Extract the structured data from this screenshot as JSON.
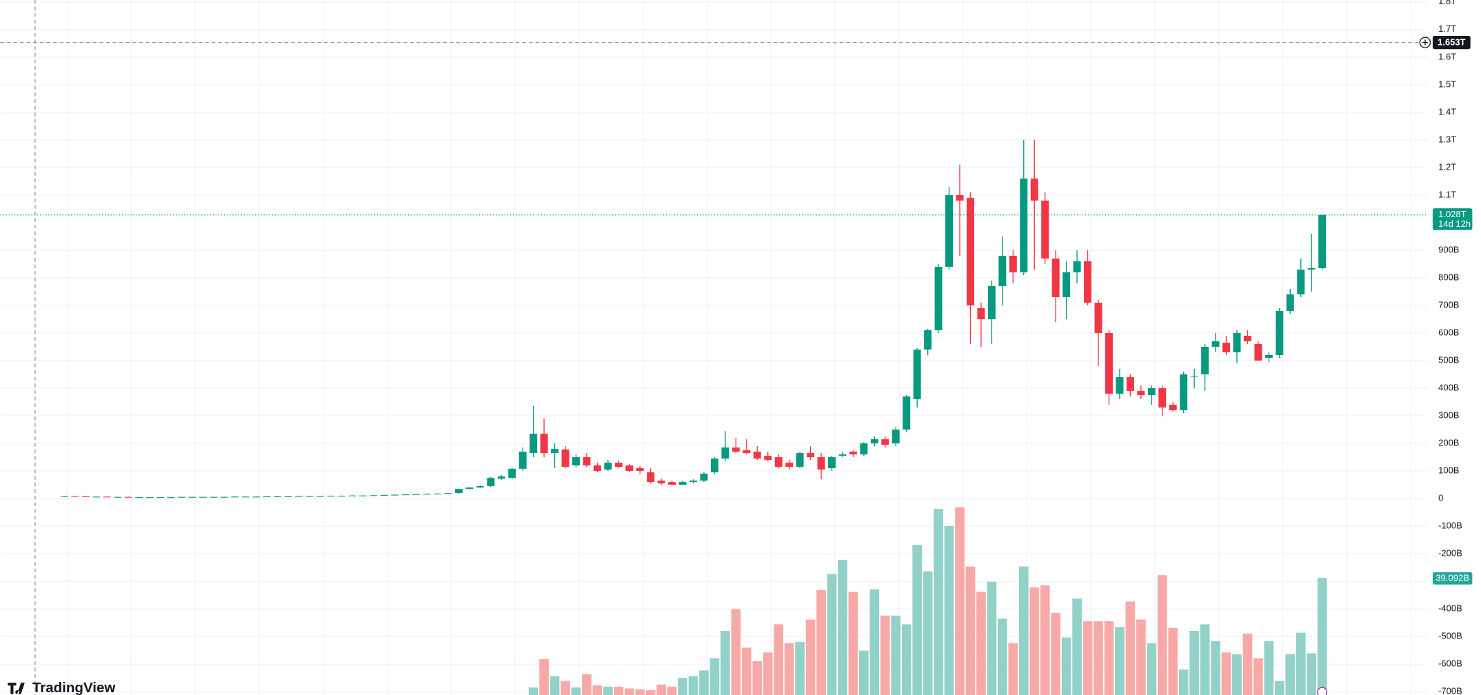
{
  "chart_data": {
    "type": "candlestick",
    "open": [
      8,
      9,
      8,
      7,
      7,
      6,
      6,
      5,
      5,
      5,
      5,
      5,
      6,
      6,
      6,
      6,
      6,
      7,
      7,
      7,
      8,
      8,
      8,
      9,
      9,
      9,
      10,
      10,
      11,
      11,
      12,
      13,
      14,
      15,
      16,
      17,
      18,
      20,
      35,
      40,
      45,
      72,
      75,
      108,
      165,
      235,
      165,
      178,
      120,
      150,
      120,
      105,
      130,
      120,
      110,
      95,
      65,
      60,
      50,
      60,
      65,
      95,
      145,
      185,
      175,
      170,
      155,
      150,
      130,
      115,
      165,
      150,
      110,
      155,
      170,
      160,
      200,
      215,
      200,
      250,
      360,
      540,
      610,
      840,
      1100,
      1090,
      690,
      650,
      770,
      880,
      820,
      1160,
      1080,
      870,
      730,
      820,
      860,
      710,
      600,
      380,
      440,
      390,
      375,
      400,
      340,
      320,
      445,
      450,
      550,
      565,
      530,
      590,
      560,
      510,
      520,
      680,
      740,
      830,
      835
    ],
    "high": [
      10,
      10,
      9,
      8,
      8,
      7,
      7,
      6,
      6,
      6,
      6,
      7,
      7,
      7,
      7,
      7,
      8,
      8,
      8,
      9,
      9,
      9,
      10,
      10,
      10,
      11,
      11,
      12,
      12,
      13,
      14,
      15,
      16,
      17,
      18,
      19,
      21,
      36,
      42,
      48,
      78,
      85,
      112,
      185,
      335,
      290,
      200,
      190,
      160,
      165,
      130,
      140,
      138,
      125,
      118,
      110,
      72,
      65,
      65,
      70,
      95,
      150,
      245,
      220,
      215,
      190,
      170,
      160,
      140,
      170,
      190,
      165,
      155,
      170,
      175,
      205,
      225,
      225,
      260,
      375,
      545,
      615,
      850,
      1130,
      1210,
      1110,
      710,
      790,
      950,
      900,
      1300,
      1300,
      1110,
      900,
      860,
      900,
      900,
      720,
      610,
      470,
      450,
      410,
      410,
      410,
      350,
      460,
      470,
      560,
      600,
      590,
      610,
      610,
      570,
      530,
      690,
      760,
      870,
      960,
      1028
    ],
    "low": [
      7,
      7,
      6,
      6,
      5,
      5,
      4,
      4,
      4,
      4,
      4,
      4,
      5,
      5,
      5,
      5,
      5,
      6,
      6,
      6,
      7,
      7,
      7,
      8,
      8,
      8,
      9,
      9,
      10,
      10,
      11,
      12,
      13,
      14,
      15,
      16,
      17,
      18,
      33,
      38,
      42,
      68,
      70,
      100,
      150,
      150,
      110,
      110,
      112,
      115,
      95,
      100,
      110,
      95,
      90,
      55,
      50,
      48,
      48,
      55,
      60,
      90,
      135,
      165,
      160,
      140,
      135,
      110,
      105,
      110,
      140,
      70,
      100,
      150,
      150,
      155,
      190,
      185,
      190,
      240,
      330,
      520,
      600,
      830,
      880,
      560,
      550,
      560,
      700,
      780,
      810,
      830,
      850,
      640,
      650,
      780,
      700,
      480,
      340,
      360,
      370,
      360,
      340,
      300,
      315,
      310,
      400,
      390,
      530,
      520,
      490,
      560,
      500,
      495,
      510,
      670,
      730,
      750,
      830
    ],
    "close": [
      9,
      8,
      7,
      7,
      6,
      6,
      5,
      5,
      5,
      5,
      5,
      6,
      6,
      6,
      6,
      6,
      7,
      7,
      7,
      8,
      8,
      8,
      9,
      9,
      9,
      10,
      10,
      11,
      11,
      12,
      13,
      14,
      15,
      16,
      17,
      18,
      20,
      35,
      40,
      45,
      75,
      80,
      108,
      170,
      235,
      165,
      180,
      115,
      150,
      120,
      100,
      130,
      115,
      100,
      100,
      60,
      55,
      50,
      60,
      65,
      90,
      145,
      185,
      170,
      165,
      145,
      140,
      115,
      115,
      165,
      150,
      105,
      150,
      160,
      160,
      200,
      215,
      195,
      250,
      370,
      540,
      610,
      840,
      1100,
      1080,
      700,
      650,
      770,
      880,
      820,
      1160,
      1080,
      870,
      730,
      820,
      860,
      710,
      600,
      380,
      440,
      390,
      375,
      400,
      330,
      320,
      450,
      445,
      550,
      570,
      530,
      600,
      570,
      500,
      520,
      680,
      740,
      830,
      835,
      1028
    ],
    "volume": [
      null,
      null,
      null,
      null,
      null,
      null,
      null,
      null,
      null,
      null,
      null,
      null,
      null,
      null,
      null,
      null,
      null,
      null,
      null,
      null,
      null,
      null,
      null,
      null,
      null,
      null,
      null,
      null,
      null,
      null,
      null,
      null,
      null,
      null,
      null,
      null,
      null,
      null,
      null,
      null,
      null,
      null,
      null,
      null,
      2.5,
      12.0,
      6.3,
      4.7,
      2.5,
      6.9,
      3.2,
      2.8,
      2.8,
      2.2,
      1.9,
      1.6,
      3.5,
      2.8,
      5.7,
      6.3,
      8.2,
      12.3,
      21.4,
      28.7,
      15.8,
      11.3,
      14.2,
      23.6,
      17.3,
      17.7,
      25.2,
      35.0,
      40.4,
      45.1,
      34.4,
      14.8,
      35.3,
      26.5,
      26.5,
      23.6,
      50.1,
      41.3,
      62.1,
      56.4,
      62.7,
      42.9,
      34.4,
      37.8,
      25.5,
      17.3,
      42.9,
      35.9,
      36.6,
      27.4,
      19.2,
      32.2,
      24.6,
      24.6,
      24.6,
      22.7,
      31.2,
      25.2,
      17.3,
      40.0,
      22.4,
      8.5,
      21.4,
      23.6,
      18.0,
      14.2,
      13.6,
      20.5,
      12.3,
      18.0,
      4.7,
      13.6,
      20.8,
      13.9,
      39.092
    ],
    "ylim": [
      -712,
      1807
    ],
    "yticks": [
      {
        "value": -700,
        "label": "-700B"
      },
      {
        "value": -600,
        "label": "-600B"
      },
      {
        "value": -500,
        "label": "-500B"
      },
      {
        "value": -400,
        "label": "-400B"
      },
      {
        "value": -300,
        "label": "-300B"
      },
      {
        "value": -200,
        "label": "-200B"
      },
      {
        "value": -100,
        "label": "-100B"
      },
      0,
      {
        "value": 100,
        "label": "100B"
      },
      {
        "value": 200,
        "label": "200B"
      },
      {
        "value": 300,
        "label": "300B"
      },
      {
        "value": 400,
        "label": "400B"
      },
      {
        "value": 500,
        "label": "500B"
      },
      {
        "value": 600,
        "label": "600B"
      },
      {
        "value": 700,
        "label": "700B"
      },
      {
        "value": 800,
        "label": "800B"
      },
      {
        "value": 900,
        "label": "900B"
      },
      {
        "value": 1100,
        "label": "1.1T"
      },
      {
        "value": 1200,
        "label": "1.2T"
      },
      {
        "value": 1300,
        "label": "1.3T"
      },
      {
        "value": 1400,
        "label": "1.4T"
      },
      {
        "value": 1500,
        "label": "1.5T"
      },
      {
        "value": 1600,
        "label": "1.6T"
      },
      {
        "value": 1700,
        "label": "1.7T"
      },
      {
        "value": 1800,
        "label": "1.8T"
      }
    ],
    "y2lim": [
      0,
      232
    ],
    "grid": true,
    "up_color": "#089981",
    "down_color": "#f23645",
    "volume_up_color": "#92d1c7",
    "volume_down_color": "#f7a9a7",
    "last_price": {
      "value": 1028,
      "label": "1.028T"
    },
    "countdown": "14d 12h",
    "crosshair": {
      "value": 1653,
      "label": "1.653T"
    },
    "volume_label": {
      "value": 39.092,
      "label": "39.092B"
    }
  },
  "logo": "TradingView"
}
